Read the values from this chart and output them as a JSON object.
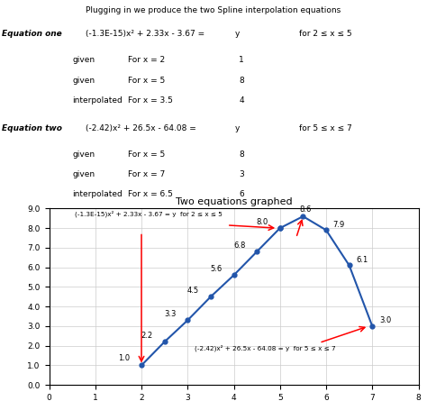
{
  "title_top": "Plugging in we produce the two Spline interpolation equations",
  "eq1_label": "Equation one",
  "eq1_formula": "(-1.3E-15)x² + 2.33x - 3.67 =",
  "eq1_y": "y",
  "eq1_range": "for 2 ≤ x ≤ 5",
  "eq1_rows": [
    [
      "given",
      "For x = 2",
      "1"
    ],
    [
      "given",
      "For x = 5",
      "8"
    ],
    [
      "interpolated",
      "For x = 3.5",
      "4"
    ]
  ],
  "eq2_label": "Equation two",
  "eq2_formula": "(-2.42)x² + 26.5x - 64.08 =",
  "eq2_y": "y",
  "eq2_range": "for 5 ≤ x ≤ 7",
  "eq2_rows": [
    [
      "given",
      "For x = 5",
      "8"
    ],
    [
      "given",
      "For x = 7",
      "3"
    ],
    [
      "interpolated",
      "For x = 6.5",
      "6"
    ]
  ],
  "graph_title": "Two equations graphed",
  "curve1_x": [
    2.0,
    2.5,
    3.0,
    3.5,
    4.0,
    4.5,
    5.0
  ],
  "curve1_y": [
    1.0,
    2.2,
    3.3,
    4.5,
    5.6,
    6.8,
    8.0
  ],
  "curve2_x": [
    5.0,
    5.5,
    6.0,
    6.5,
    7.0
  ],
  "curve2_y": [
    8.0,
    8.6,
    7.9,
    6.1,
    3.0
  ],
  "curve_color": "#2255aa",
  "annotation_color": "red",
  "xlim": [
    0,
    8
  ],
  "ylim": [
    0.0,
    9.0
  ],
  "xticks": [
    0,
    1,
    2,
    3,
    4,
    5,
    6,
    7,
    8
  ],
  "yticks": [
    0.0,
    1.0,
    2.0,
    3.0,
    4.0,
    5.0,
    6.0,
    7.0,
    8.0,
    9.0
  ],
  "eq1_graph_label": "(-1.3E-15)x² + 2.33x - 3.67 = y  for 2 ≤ x ≤ 5",
  "eq2_graph_label": "(-2.42)x² + 26.5x - 64.08 = y  for 5 ≤ x ≤ 7",
  "point_labels_curve1": [
    "1.0",
    "2.2",
    "3.3",
    "4.5",
    "5.6",
    "6.8",
    "8.0"
  ],
  "point_labels_curve2_extra": [
    "8.6",
    "7.9",
    "6.1",
    "3.0"
  ],
  "background_color": "#ffffff"
}
